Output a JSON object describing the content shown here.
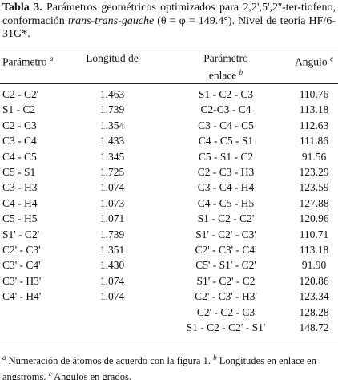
{
  "caption": {
    "label": "Tabla 3.",
    "text_before": "Parámetros geométricos optimizados para 2,2',5',2''-ter-tiofeno, conformación ",
    "italic": "trans-trans-gauche",
    "text_after": " (θ = φ = 149.4°). Nivel de teoría HF/6-31G*."
  },
  "table": {
    "headers": [
      {
        "lines": [
          "Parámetro"
        ],
        "note": "a"
      },
      {
        "lines": [
          "Longitud de"
        ]
      },
      {
        "lines": [
          "Parámetro",
          "enlace"
        ],
        "note": "b"
      },
      {
        "lines": [
          "Angulo"
        ],
        "note": "c"
      }
    ],
    "rows": [
      [
        "C2 - C2'",
        "1.463",
        "S1 - C2 - C3",
        "110.76"
      ],
      [
        "S1 - C2",
        "1.739",
        "C2-C3 - C4",
        "113.18"
      ],
      [
        "C2 - C3",
        "1.354",
        "C3 - C4 - C5",
        "112.63"
      ],
      [
        "C3 - C4",
        "1.433",
        "C4 - C5 - S1",
        "111.86"
      ],
      [
        "C4 - C5",
        "1.345",
        "C5 - S1 - C2",
        "91.56"
      ],
      [
        "C5 - S1",
        "1.725",
        "C2 - C3 - H3",
        "123.29"
      ],
      [
        "C3 - H3",
        "1.074",
        "C3 - C4 - H4",
        "123.59"
      ],
      [
        "C4 - H4",
        "1.073",
        "C4 - C5 - H5",
        "127.88"
      ],
      [
        "C5 - H5",
        "1.071",
        "S1 - C2 - C2'",
        "120.96"
      ],
      [
        "S1' - C2'",
        "1.739",
        "S1' - C2' - C3'",
        "110.71"
      ],
      [
        "C2' - C3'",
        "1.351",
        "C2' - C3' - C4'",
        "113.18"
      ],
      [
        "C3' - C4'",
        "1.430",
        "C5' - S1' - C2'",
        "91.90"
      ],
      [
        "C3' - H3'",
        "1.074",
        "S1' - C2' - C2",
        "120.86"
      ],
      [
        "C4' - H4'",
        "1.074",
        "C2' - C3' - H3'",
        "123.34"
      ],
      [
        null,
        null,
        "C2' - C2 - C3",
        "128.28"
      ],
      [
        null,
        null,
        "S1 - C2 - C2' - S1'",
        "148.72"
      ]
    ]
  },
  "footnotes": [
    {
      "mark": "a",
      "text": " Numeración de átomos de acuerdo con la figura 1. "
    },
    {
      "mark": "b",
      "text": " Longitudes en enlace en angstroms. "
    },
    {
      "mark": "c",
      "text": " Angulos en grados."
    }
  ]
}
